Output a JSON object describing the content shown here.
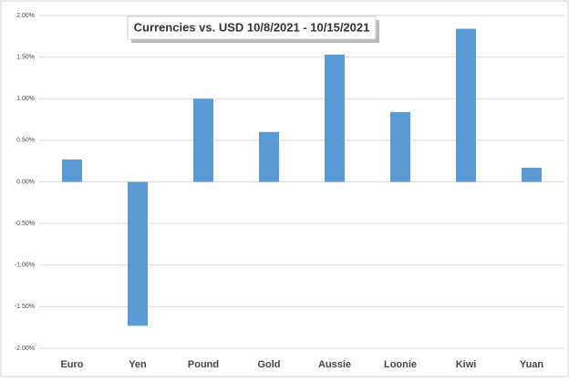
{
  "chart_data": {
    "type": "bar",
    "title": "Currencies vs. USD 10/8/2021 - 10/15/2021",
    "categories": [
      "Euro",
      "Yen",
      "Pound",
      "Gold",
      "Aussie",
      "Loonie",
      "Kiwi",
      "Yuan"
    ],
    "values": [
      0.27,
      -1.73,
      1.0,
      0.6,
      1.53,
      0.84,
      1.84,
      0.17
    ],
    "color": "#5b9bd5",
    "ylim": [
      -2,
      2
    ],
    "yticks": [
      {
        "value": 2,
        "label": "2.00%"
      },
      {
        "value": 1.5,
        "label": "1.50%"
      },
      {
        "value": 1,
        "label": "1.00%"
      },
      {
        "value": 0.5,
        "label": "0.50%"
      },
      {
        "value": 0,
        "label": "0.00%"
      },
      {
        "value": -0.5,
        "label": "-0.50%"
      },
      {
        "value": -1,
        "label": "-1.00%"
      },
      {
        "value": -1.5,
        "label": "-1.50%"
      },
      {
        "value": -2,
        "label": "-2.00%"
      }
    ],
    "grid": true
  }
}
